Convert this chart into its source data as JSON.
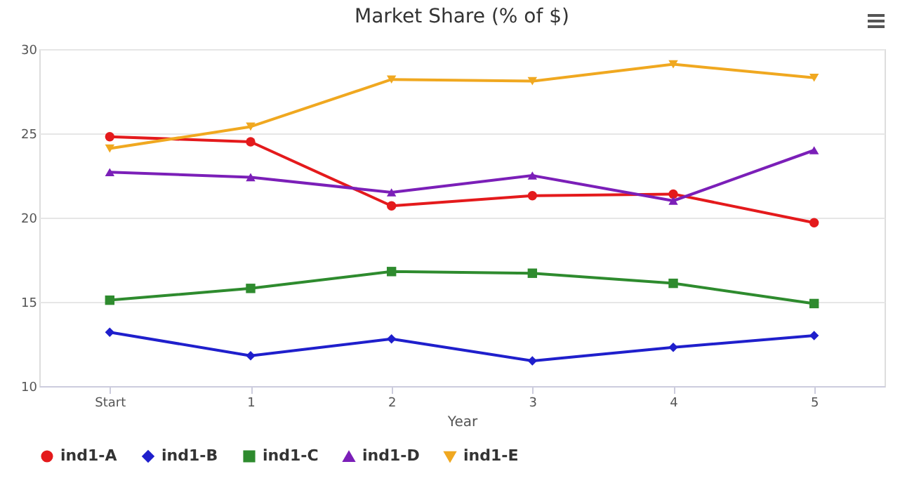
{
  "chart_data": {
    "type": "line",
    "title": "Market Share (% of $)",
    "xlabel": "Year",
    "categories": [
      "Start",
      "1",
      "2",
      "3",
      "4",
      "5"
    ],
    "series": [
      {
        "name": "ind1-A",
        "color": "#e41a1c",
        "marker": "circle",
        "values": [
          24.8,
          24.5,
          20.7,
          21.3,
          21.4,
          19.7
        ]
      },
      {
        "name": "ind1-B",
        "color": "#1f1fcc",
        "marker": "diamond",
        "values": [
          13.2,
          11.8,
          12.8,
          11.5,
          12.3,
          13.0
        ]
      },
      {
        "name": "ind1-C",
        "color": "#2e8b2e",
        "marker": "square",
        "values": [
          15.1,
          15.8,
          16.8,
          16.7,
          16.1,
          14.9
        ]
      },
      {
        "name": "ind1-D",
        "color": "#7b1fb8",
        "marker": "triangle",
        "values": [
          22.7,
          22.4,
          21.5,
          22.5,
          21.0,
          24.0
        ]
      },
      {
        "name": "ind1-E",
        "color": "#f0a820",
        "marker": "triangle-down",
        "values": [
          24.1,
          25.4,
          28.2,
          28.1,
          29.1,
          28.3
        ]
      }
    ],
    "ylim": [
      10,
      30
    ],
    "yticks": [
      10,
      15,
      20,
      25,
      30
    ],
    "grid": "y",
    "legend": "bottom"
  }
}
